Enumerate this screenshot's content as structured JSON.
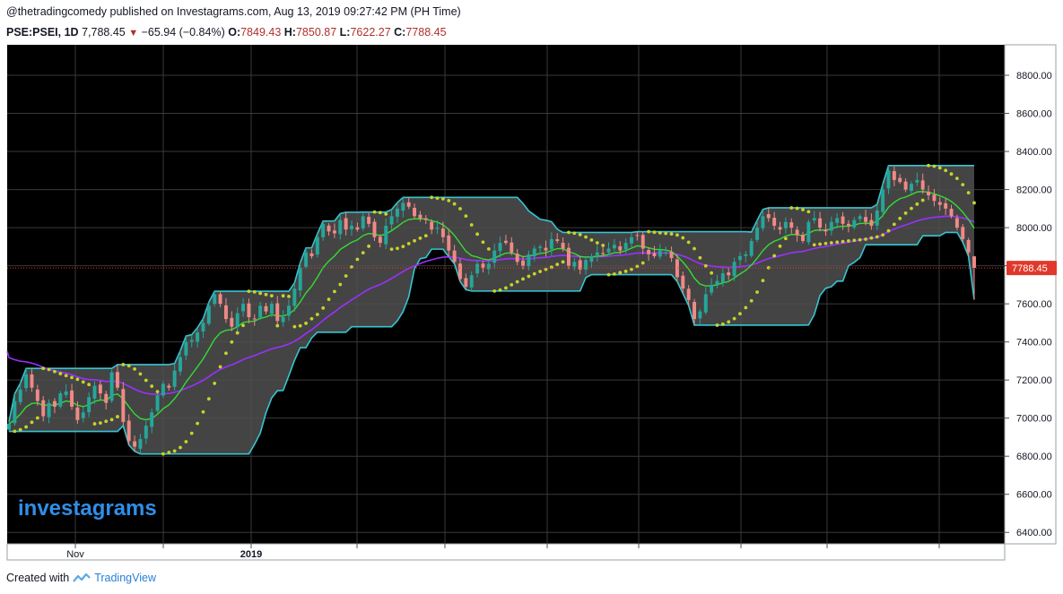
{
  "header": {
    "published": "@thetradingcomedy published on Investagrams.com, Aug 13, 2019 09:27:42 PM (PH Time)",
    "symbol": "PSE:PSEI, 1D",
    "last": "7,788.45",
    "change": "−65.94 (−0.84%)",
    "open_label": "O:",
    "open": "7849.43",
    "high_label": "H:",
    "high": "7850.87",
    "low_label": "L:",
    "low": "7622.27",
    "close_label": "C:",
    "close": "7788.45"
  },
  "watermark": "investagrams",
  "footer": {
    "created_with": "Created with",
    "brand": "TradingView"
  },
  "colors": {
    "background": "#000000",
    "up": "#26a69a",
    "down": "#ef8a86",
    "band": "#36c5d2",
    "band_fill": "#505050",
    "ema_fast": "#33dd33",
    "ema_slow": "#9b30ff",
    "psar": "#c8d32a",
    "price_line": "#e0392b",
    "watermark": "#2f8ee8"
  },
  "chart_data": {
    "type": "candlestick",
    "title": "PSE:PSEI, 1D",
    "x_tick_labels": [
      "Nov",
      "2019"
    ],
    "y_tick_labels": [
      "8800.00",
      "8600.00",
      "8400.00",
      "8200.00",
      "8000.00",
      "7800.00",
      "7600.00",
      "7400.00",
      "7200.00",
      "7000.00",
      "6800.00",
      "6600.00",
      "6400.00"
    ],
    "ylim": [
      6340,
      8960
    ],
    "grid": true,
    "last_price_label": "7788.45",
    "last_price": 7788.45,
    "series_close": [
      6970,
      7090,
      7150,
      7230,
      7160,
      7090,
      7010,
      7080,
      7060,
      7130,
      7140,
      7060,
      6990,
      7030,
      7110,
      7170,
      7130,
      7080,
      7240,
      7160,
      6980,
      6880,
      6850,
      6890,
      6960,
      7030,
      7120,
      7180,
      7160,
      7250,
      7320,
      7400,
      7410,
      7450,
      7500,
      7590,
      7650,
      7600,
      7520,
      7480,
      7550,
      7600,
      7530,
      7520,
      7590,
      7560,
      7600,
      7510,
      7530,
      7590,
      7680,
      7790,
      7870,
      7850,
      7950,
      8020,
      7980,
      7970,
      8040,
      7990,
      8010,
      7990,
      8060,
      8020,
      7950,
      7920,
      8010,
      8060,
      8100,
      8130,
      8110,
      8060,
      8050,
      8040,
      7990,
      8000,
      7950,
      7880,
      7820,
      7730,
      7690,
      7750,
      7810,
      7790,
      7810,
      7880,
      7920,
      7920,
      7870,
      7820,
      7800,
      7860,
      7890,
      7900,
      7880,
      7940,
      7930,
      7890,
      7800,
      7820,
      7780,
      7830,
      7850,
      7870,
      7860,
      7890,
      7910,
      7880,
      7920,
      7950,
      7960,
      7890,
      7860,
      7850,
      7880,
      7870,
      7840,
      7740,
      7680,
      7620,
      7520,
      7560,
      7650,
      7700,
      7720,
      7760,
      7750,
      7820,
      7850,
      7860,
      7930,
      8000,
      8060,
      8050,
      8010,
      7990,
      8030,
      8000,
      7960,
      7930,
      8030,
      8050,
      8000,
      7980,
      8030,
      8050,
      8020,
      8010,
      8040,
      8060,
      8030,
      8010,
      8090,
      8200,
      8300,
      8250,
      8240,
      8200,
      8230,
      8250,
      8200,
      8170,
      8140,
      8120,
      8100,
      8060,
      8000,
      7940,
      7870,
      7788.45
    ]
  }
}
